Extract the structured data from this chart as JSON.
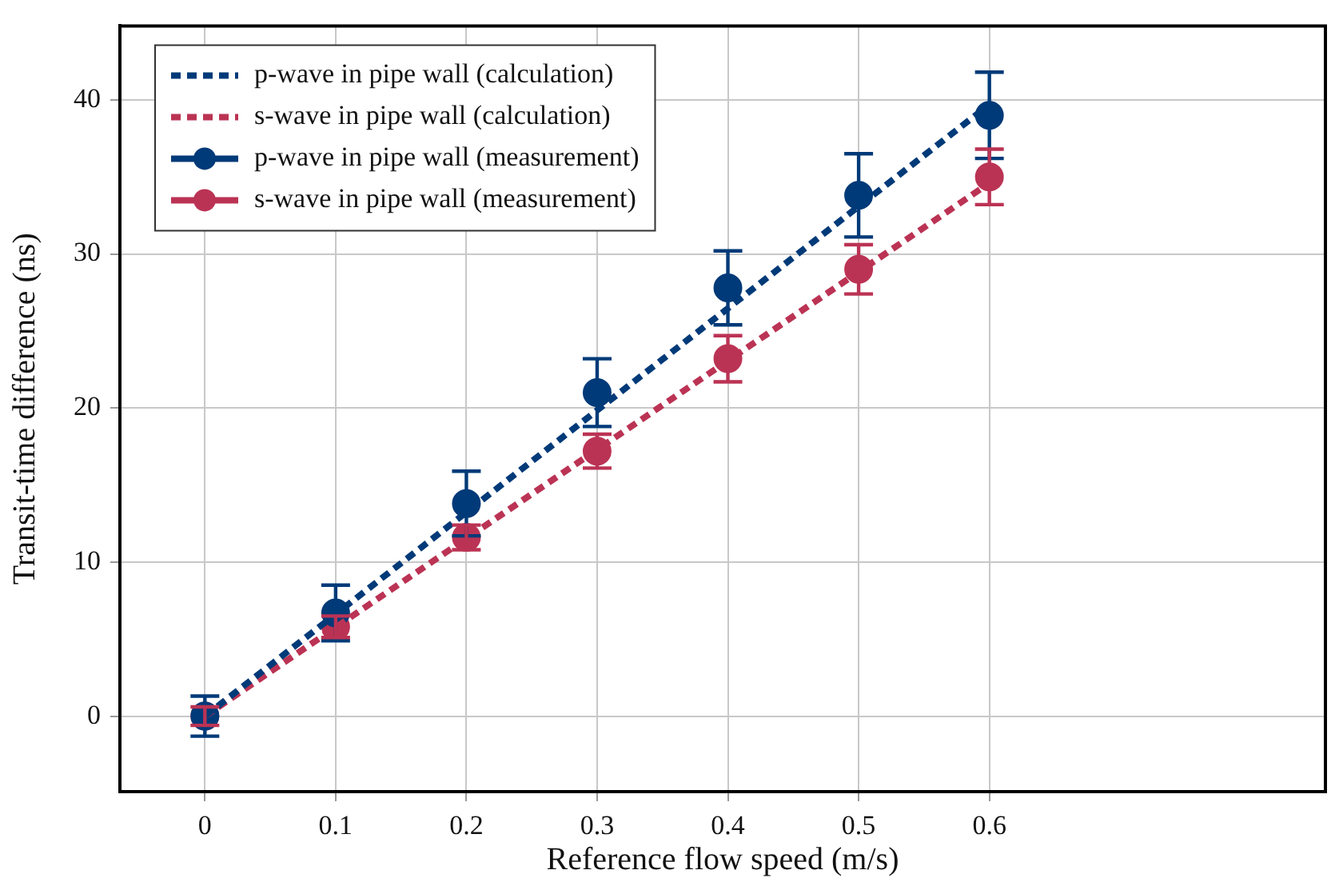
{
  "chart_data": {
    "type": "line",
    "xlabel": "Reference flow speed (m/s)",
    "ylabel": "Transit-time difference (ns)",
    "xlim": [
      -0.065,
      0.857
    ],
    "xticks": [
      0,
      0.1,
      0.2,
      0.3,
      0.4,
      0.5,
      0.6
    ],
    "ylim": [
      -4.9,
      44.8
    ],
    "yticks": [
      0,
      10,
      20,
      30,
      40
    ],
    "grid": true,
    "legend": "top left",
    "series": [
      {
        "name": "p-wave in pipe wall (calculation)",
        "color": "#003a78",
        "type": "line",
        "line_style": "dashed",
        "x": [
          0,
          0.6
        ],
        "values": [
          0,
          39.7
        ]
      },
      {
        "name": "s-wave in pipe wall (calculation)",
        "color": "#bb3354",
        "type": "line",
        "line_style": "dashed",
        "x": [
          0,
          0.6
        ],
        "values": [
          0,
          34.6
        ]
      },
      {
        "name": "p-wave in pipe wall (measurement)",
        "color": "#003a78",
        "type": "scatter",
        "marker": "circle",
        "x": [
          0,
          0.1,
          0.2,
          0.3,
          0.4,
          0.5,
          0.6
        ],
        "values": [
          0,
          6.7,
          13.8,
          21,
          27.8,
          33.8,
          39
        ],
        "errors": [
          1.3,
          1.8,
          2.1,
          2.2,
          2.4,
          2.7,
          2.8
        ]
      },
      {
        "name": "s-wave in pipe wall (measurement)",
        "color": "#bb3354",
        "type": "scatter",
        "marker": "circle",
        "x": [
          0,
          0.1,
          0.2,
          0.3,
          0.4,
          0.5,
          0.6
        ],
        "values": [
          0,
          5.8,
          11.6,
          17.2,
          23.2,
          29,
          35
        ],
        "errors": [
          0.6,
          0.7,
          0.8,
          1.1,
          1.5,
          1.6,
          1.8
        ]
      }
    ]
  }
}
